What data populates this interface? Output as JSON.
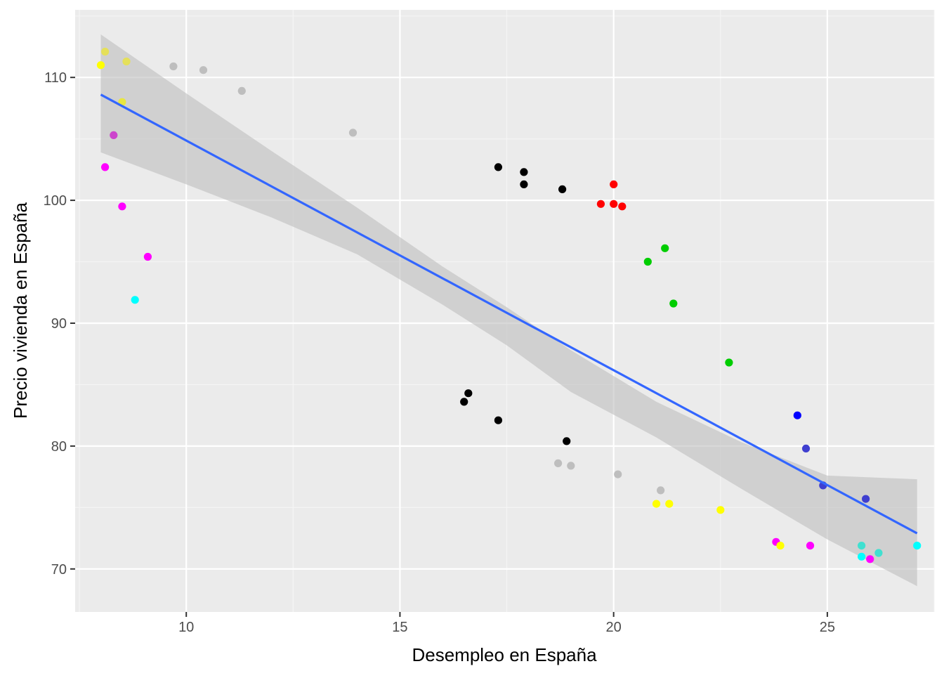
{
  "chart_data": {
    "type": "scatter",
    "title": "",
    "xlabel": "Desempleo en España",
    "ylabel": "Precio vivienda en España",
    "xlim": [
      7.4,
      27.5
    ],
    "ylim": [
      66.5,
      115.5
    ],
    "x_ticks": [
      10,
      15,
      20,
      25
    ],
    "y_ticks": [
      70,
      80,
      90,
      100,
      110
    ],
    "grid": true,
    "legend": "none",
    "points": [
      {
        "x": 8.0,
        "y": 111.0,
        "color": "#FFFF00"
      },
      {
        "x": 8.1,
        "y": 112.1,
        "color": "#E5E05A"
      },
      {
        "x": 8.6,
        "y": 111.3,
        "color": "#E5E05A"
      },
      {
        "x": 8.5,
        "y": 108.0,
        "color": "#E8E640"
      },
      {
        "x": 8.3,
        "y": 105.3,
        "color": "#CC44CC"
      },
      {
        "x": 8.1,
        "y": 102.7,
        "color": "#FF00FF"
      },
      {
        "x": 8.5,
        "y": 99.5,
        "color": "#FF00FF"
      },
      {
        "x": 9.1,
        "y": 95.4,
        "color": "#FF00FF"
      },
      {
        "x": 8.8,
        "y": 91.9,
        "color": "#00FFFF"
      },
      {
        "x": 9.7,
        "y": 110.9,
        "color": "#BEBEBE"
      },
      {
        "x": 10.4,
        "y": 110.6,
        "color": "#BEBEBE"
      },
      {
        "x": 11.3,
        "y": 108.9,
        "color": "#BEBEBE"
      },
      {
        "x": 13.9,
        "y": 105.5,
        "color": "#BEBEBE"
      },
      {
        "x": 17.3,
        "y": 102.7,
        "color": "#000000"
      },
      {
        "x": 17.9,
        "y": 102.3,
        "color": "#000000"
      },
      {
        "x": 17.9,
        "y": 101.3,
        "color": "#000000"
      },
      {
        "x": 18.8,
        "y": 100.9,
        "color": "#000000"
      },
      {
        "x": 19.7,
        "y": 99.7,
        "color": "#FF0000"
      },
      {
        "x": 20.0,
        "y": 101.3,
        "color": "#FF0000"
      },
      {
        "x": 20.0,
        "y": 99.7,
        "color": "#FF0000"
      },
      {
        "x": 20.2,
        "y": 99.5,
        "color": "#FF0000"
      },
      {
        "x": 21.2,
        "y": 96.1,
        "color": "#00CD00"
      },
      {
        "x": 20.8,
        "y": 95.0,
        "color": "#00CD00"
      },
      {
        "x": 21.4,
        "y": 91.6,
        "color": "#00CD00"
      },
      {
        "x": 22.7,
        "y": 86.8,
        "color": "#00CD00"
      },
      {
        "x": 16.6,
        "y": 84.3,
        "color": "#000000"
      },
      {
        "x": 16.5,
        "y": 83.6,
        "color": "#000000"
      },
      {
        "x": 17.3,
        "y": 82.1,
        "color": "#000000"
      },
      {
        "x": 18.9,
        "y": 80.4,
        "color": "#000000"
      },
      {
        "x": 18.7,
        "y": 78.6,
        "color": "#BEBEBE"
      },
      {
        "x": 19.0,
        "y": 78.4,
        "color": "#BEBEBE"
      },
      {
        "x": 20.1,
        "y": 77.7,
        "color": "#BEBEBE"
      },
      {
        "x": 21.1,
        "y": 76.4,
        "color": "#BEBEBE"
      },
      {
        "x": 21.0,
        "y": 75.3,
        "color": "#FFFF00"
      },
      {
        "x": 21.3,
        "y": 75.3,
        "color": "#FFFF00"
      },
      {
        "x": 22.5,
        "y": 74.8,
        "color": "#FFFF00"
      },
      {
        "x": 24.3,
        "y": 82.5,
        "color": "#0000FF"
      },
      {
        "x": 24.5,
        "y": 79.8,
        "color": "#3F3FD0"
      },
      {
        "x": 24.9,
        "y": 76.8,
        "color": "#3F3FD0"
      },
      {
        "x": 25.9,
        "y": 75.7,
        "color": "#3F3FD0"
      },
      {
        "x": 23.8,
        "y": 72.2,
        "color": "#FF00FF"
      },
      {
        "x": 23.9,
        "y": 71.9,
        "color": "#FFFF00"
      },
      {
        "x": 24.6,
        "y": 71.9,
        "color": "#FF00FF"
      },
      {
        "x": 25.8,
        "y": 71.9,
        "color": "#40E0D0"
      },
      {
        "x": 25.8,
        "y": 71.0,
        "color": "#00FFFF"
      },
      {
        "x": 26.0,
        "y": 70.8,
        "color": "#FF00FF"
      },
      {
        "x": 26.2,
        "y": 71.3,
        "color": "#40E0D0"
      },
      {
        "x": 27.1,
        "y": 71.9,
        "color": "#00FFFF"
      }
    ],
    "fit_line": {
      "color": "#3366FF",
      "x": [
        8.0,
        27.1
      ],
      "y": [
        108.6,
        72.9
      ]
    },
    "confidence_band": {
      "color": "#BEBEBE",
      "x": [
        8.0,
        10.0,
        12.0,
        14.0,
        16.0,
        17.5,
        19.0,
        21.0,
        23.0,
        25.0,
        27.1
      ],
      "upper": [
        113.5,
        108.7,
        104.0,
        99.4,
        94.6,
        91.3,
        87.8,
        83.6,
        80.3,
        77.6,
        77.3
      ],
      "lower": [
        103.9,
        101.3,
        98.6,
        95.6,
        91.5,
        88.2,
        84.4,
        80.7,
        76.5,
        72.4,
        68.6
      ]
    },
    "colors": {
      "panel": "#EBEBEB",
      "grid_major": "#FFFFFF",
      "grid_minor": "#F5F5F5",
      "tick_label": "#4D4D4D",
      "axis_title": "#000000"
    }
  }
}
